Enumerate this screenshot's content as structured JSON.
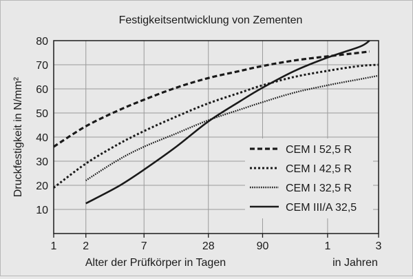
{
  "chart_data": {
    "type": "line",
    "title": "Festigkeitsentwicklung von Zementen",
    "ylabel": "Druckfestigkeit in N/mm²",
    "xlabel": "Alter der Prüfkörper in Tagen",
    "xlabel_years": "in Jahren",
    "x_scale": "log",
    "x_unit": "days",
    "xlim": [
      1,
      1095
    ],
    "ylim": [
      0,
      80
    ],
    "yticks": [
      10,
      20,
      30,
      40,
      50,
      60,
      70,
      80
    ],
    "xticks": [
      {
        "label": "1",
        "days": 1
      },
      {
        "label": "2",
        "days": 2
      },
      {
        "label": "7",
        "days": 7
      },
      {
        "label": "28",
        "days": 28
      },
      {
        "label": "90",
        "days": 90
      },
      {
        "label": "1",
        "days": 365
      },
      {
        "label": "3",
        "days": 1095
      }
    ],
    "grid": true,
    "legend_position": "bottom-right",
    "series": [
      {
        "name": "CEM I 52,5 R",
        "style": "dashed",
        "points": [
          [
            1,
            36
          ],
          [
            2,
            44.5
          ],
          [
            4,
            51
          ],
          [
            7,
            55.5
          ],
          [
            14,
            60.5
          ],
          [
            28,
            64.5
          ],
          [
            56,
            67.5
          ],
          [
            90,
            69.5
          ],
          [
            180,
            71.8
          ],
          [
            365,
            73.5
          ],
          [
            730,
            75
          ],
          [
            900,
            75.5
          ]
        ]
      },
      {
        "name": "CEM I 42,5 R",
        "style": "dotted",
        "points": [
          [
            1,
            19
          ],
          [
            2,
            29
          ],
          [
            4,
            37
          ],
          [
            7,
            42.5
          ],
          [
            14,
            48.5
          ],
          [
            28,
            54
          ],
          [
            56,
            58.5
          ],
          [
            90,
            61.5
          ],
          [
            180,
            65
          ],
          [
            365,
            67.5
          ],
          [
            730,
            69.5
          ],
          [
            1095,
            70
          ]
        ]
      },
      {
        "name": "CEM I 32,5 R",
        "style": "fine-dotted",
        "points": [
          [
            2,
            22
          ],
          [
            4,
            30.5
          ],
          [
            7,
            36
          ],
          [
            14,
            41.5
          ],
          [
            28,
            47
          ],
          [
            56,
            51.5
          ],
          [
            90,
            54.5
          ],
          [
            180,
            58.5
          ],
          [
            365,
            61.5
          ],
          [
            730,
            64
          ],
          [
            1095,
            65.5
          ]
        ]
      },
      {
        "name": "CEM III/A 32,5",
        "style": "solid",
        "points": [
          [
            2,
            12.5
          ],
          [
            4,
            19.5
          ],
          [
            7,
            26.5
          ],
          [
            14,
            36
          ],
          [
            28,
            46.5
          ],
          [
            56,
            55
          ],
          [
            90,
            60.5
          ],
          [
            180,
            67.5
          ],
          [
            365,
            73
          ],
          [
            730,
            77.5
          ],
          [
            900,
            80
          ]
        ]
      }
    ]
  }
}
